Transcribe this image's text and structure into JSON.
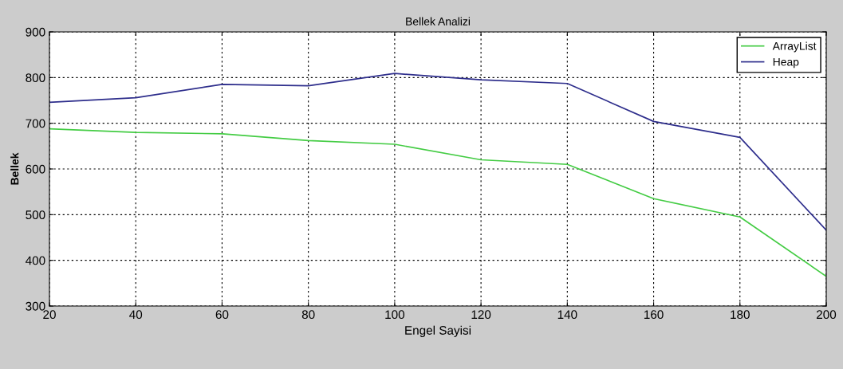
{
  "chart_data": {
    "type": "line",
    "title": "Bellek Analizi",
    "xlabel": "Engel Sayisi",
    "ylabel": "Bellek",
    "x": [
      20,
      40,
      60,
      80,
      100,
      120,
      140,
      160,
      180,
      200
    ],
    "series": [
      {
        "name": "ArrayList",
        "color": "#44cc44",
        "values": [
          688,
          680,
          677,
          662,
          654,
          620,
          610,
          535,
          495,
          365
        ]
      },
      {
        "name": "Heap",
        "color": "#2e2e8c",
        "values": [
          746,
          756,
          785,
          782,
          809,
          795,
          787,
          704,
          669,
          466
        ]
      }
    ],
    "xlim": [
      20,
      200
    ],
    "xticks": [
      20,
      40,
      60,
      80,
      100,
      120,
      140,
      160,
      180,
      200
    ],
    "ylim": [
      300,
      900
    ],
    "yticks": [
      300,
      400,
      500,
      600,
      700,
      800,
      900
    ],
    "grid": true,
    "legend": "top right",
    "marker": "none",
    "line_style": "solid"
  }
}
